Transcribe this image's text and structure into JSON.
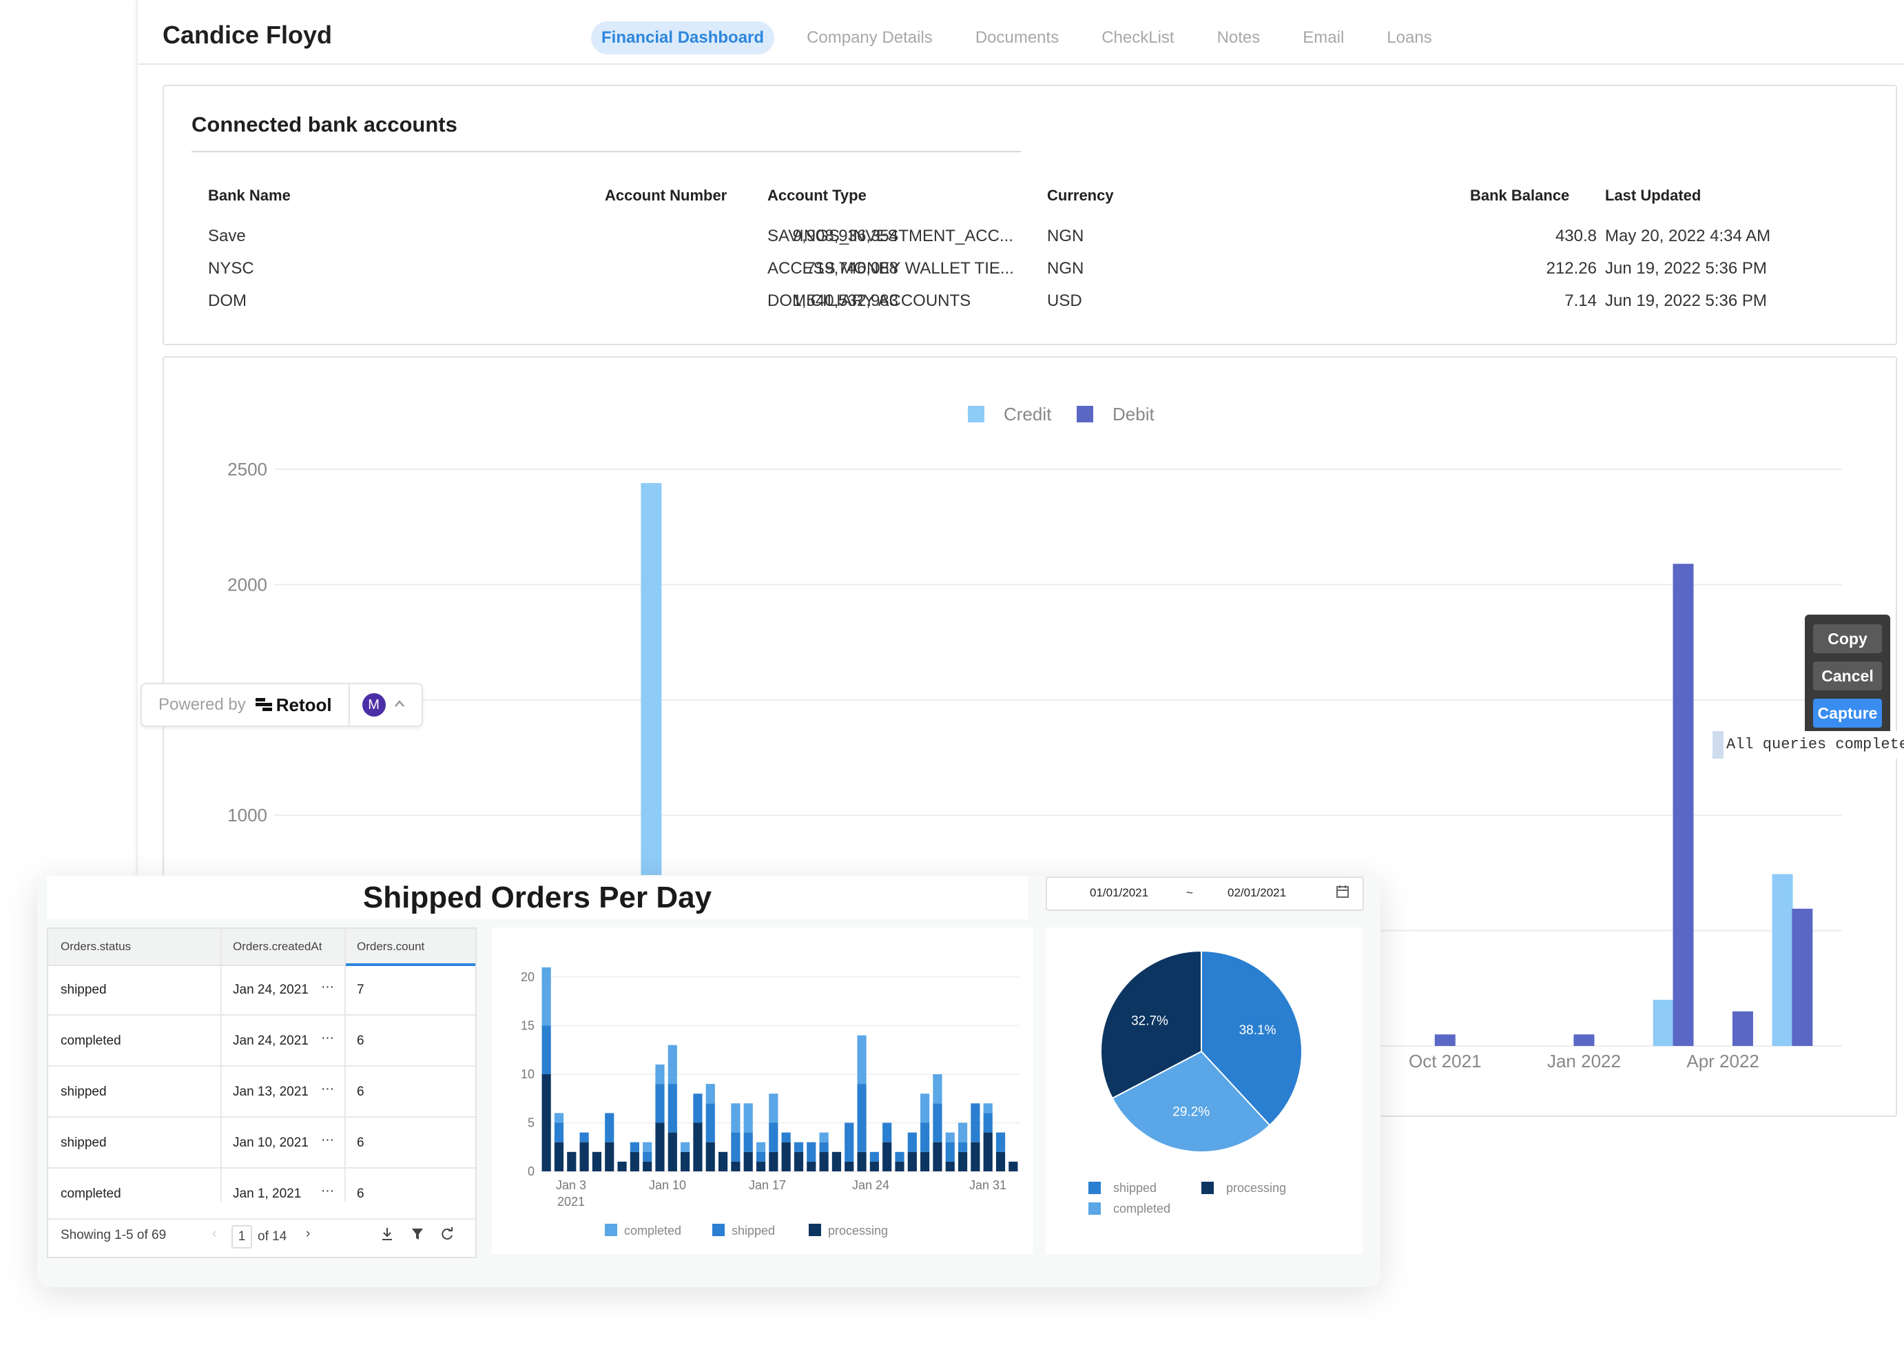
{
  "header": {
    "client_name": "Candice Floyd",
    "tabs": [
      {
        "label": "Financial Dashboard",
        "active": true
      },
      {
        "label": "Company Details"
      },
      {
        "label": "Documents"
      },
      {
        "label": "CheckList"
      },
      {
        "label": "Notes"
      },
      {
        "label": "Email"
      },
      {
        "label": "Loans"
      }
    ]
  },
  "bank_accounts": {
    "title": "Connected bank accounts",
    "columns": [
      "Bank Name",
      "Account Number",
      "Account Type",
      "Currency",
      "Bank Balance",
      "Last Updated"
    ],
    "rows": [
      {
        "bank": "Save",
        "number": "9,908,936,354",
        "type": "SAVINGS_INVESTMENT_ACC...",
        "currency": "NGN",
        "balance": "430.8",
        "updated": "May 20, 2022 4:34 AM"
      },
      {
        "bank": "NYSC",
        "number": "719,746,088",
        "type": "ACCESS MONEY WALLET TIE...",
        "currency": "NGN",
        "balance": "212.26",
        "updated": "Jun 19, 2022 5:36 PM"
      },
      {
        "bank": "DOM",
        "number": "1,540,532,983",
        "type": "DOMICILIARY ACCOUNTS",
        "currency": "USD",
        "balance": "7.14",
        "updated": "Jun 19, 2022 5:36 PM"
      }
    ]
  },
  "powered_by": {
    "label": "Powered by",
    "brand": "Retool",
    "avatar_initial": "M"
  },
  "capture_menu": {
    "copy": "Copy",
    "cancel": "Cancel",
    "capture": "Capture",
    "status": "All queries complete"
  },
  "orders": {
    "title": "Shipped Orders Per Day",
    "date_start": "01/01/2021",
    "date_sep": "~",
    "date_end": "02/01/2021",
    "table": {
      "columns": [
        "Orders.status",
        "Orders.createdAt",
        "Orders.count"
      ],
      "rows": [
        {
          "status": "shipped",
          "created": "Jan 24, 2021",
          "count": "7"
        },
        {
          "status": "completed",
          "created": "Jan 24, 2021",
          "count": "6"
        },
        {
          "status": "shipped",
          "created": "Jan 13, 2021",
          "count": "6"
        },
        {
          "status": "shipped",
          "created": "Jan 10, 2021",
          "count": "6"
        },
        {
          "status": "completed",
          "created": "Jan 1, 2021",
          "count": "6"
        }
      ],
      "cell_menu": "···",
      "footer": {
        "showing": "Showing 1-5 of 69",
        "page": "1",
        "of_pages": "of 14"
      }
    }
  },
  "chart_data": [
    {
      "type": "bar",
      "title": "",
      "legend": [
        "Credit",
        "Debit"
      ],
      "colors": {
        "Credit": "#8ecbf7",
        "Debit": "#5a67c4"
      },
      "y_ticks": [
        "2500",
        "2000",
        "1000"
      ],
      "y_grid_values": [
        2500,
        2000,
        1500,
        1000,
        500,
        0
      ],
      "x_tick_labels": [
        "Oct 2021",
        "Jan 2022",
        "Apr 2022"
      ],
      "ylim": [
        0,
        2500
      ],
      "bars": [
        {
          "series": "Credit",
          "date_index": 0,
          "value": 2440
        },
        {
          "series": "Debit",
          "date_index": 40,
          "value": 50
        },
        {
          "series": "Debit",
          "date_index": 47,
          "value": 50
        },
        {
          "series": "Credit",
          "date_index": 51,
          "value": 200
        },
        {
          "series": "Debit",
          "date_index": 52,
          "value": 2090
        },
        {
          "series": "Debit",
          "date_index": 55,
          "value": 150
        },
        {
          "series": "Credit",
          "date_index": 57,
          "value": 745
        },
        {
          "series": "Debit",
          "date_index": 58,
          "value": 595
        }
      ],
      "x_tick_index": [
        40,
        47,
        54
      ],
      "x_domain": [
        -19,
        60
      ]
    },
    {
      "type": "bar",
      "stacked": true,
      "title": "Shipped Orders Per Day",
      "x_tick_labels": [
        "Jan 3",
        "Jan 10",
        "Jan 17",
        "Jan 24",
        "Jan 31"
      ],
      "x_tick_sublabel": "2021",
      "y_ticks": [
        0,
        5,
        10,
        15,
        20
      ],
      "ylim": [
        0,
        20
      ],
      "series": [
        {
          "name": "processing",
          "color": "#0d3561",
          "values": [
            10,
            3,
            2,
            3,
            2,
            3,
            1,
            2,
            1,
            5,
            4,
            2,
            5,
            3,
            2,
            1,
            2,
            1,
            2,
            3,
            2,
            1,
            2,
            2,
            1,
            2,
            1,
            3,
            1,
            2,
            2,
            3,
            1,
            2,
            3,
            4,
            2,
            1
          ]
        },
        {
          "name": "shipped",
          "color": "#2a7fd0",
          "values": [
            5,
            2,
            0,
            1,
            0,
            3,
            0,
            1,
            1,
            4,
            5,
            0,
            3,
            4,
            0,
            3,
            2,
            1,
            3,
            1,
            1,
            2,
            1,
            0,
            4,
            7,
            1,
            2,
            1,
            2,
            3,
            4,
            2,
            1,
            4,
            2,
            2,
            0
          ]
        },
        {
          "name": "completed",
          "color": "#5aa6e6",
          "values": [
            6,
            1,
            0,
            0,
            0,
            0,
            0,
            0,
            1,
            2,
            4,
            1,
            0,
            2,
            0,
            3,
            3,
            1,
            3,
            0,
            0,
            0,
            1,
            0,
            0,
            5,
            0,
            0,
            0,
            0,
            3,
            3,
            1,
            2,
            0,
            1,
            0,
            0
          ]
        }
      ],
      "legend": [
        "completed",
        "shipped",
        "processing"
      ]
    },
    {
      "type": "pie",
      "slices": [
        {
          "label": "shipped",
          "value": 38.1,
          "display": "38.1%",
          "color": "#2a7fd0"
        },
        {
          "label": "completed",
          "value": 29.2,
          "display": "29.2%",
          "color": "#5aa6e6"
        },
        {
          "label": "processing",
          "value": 32.7,
          "display": "32.7%",
          "color": "#0d3561"
        }
      ],
      "legend": [
        "shipped",
        "processing",
        "completed"
      ]
    }
  ]
}
